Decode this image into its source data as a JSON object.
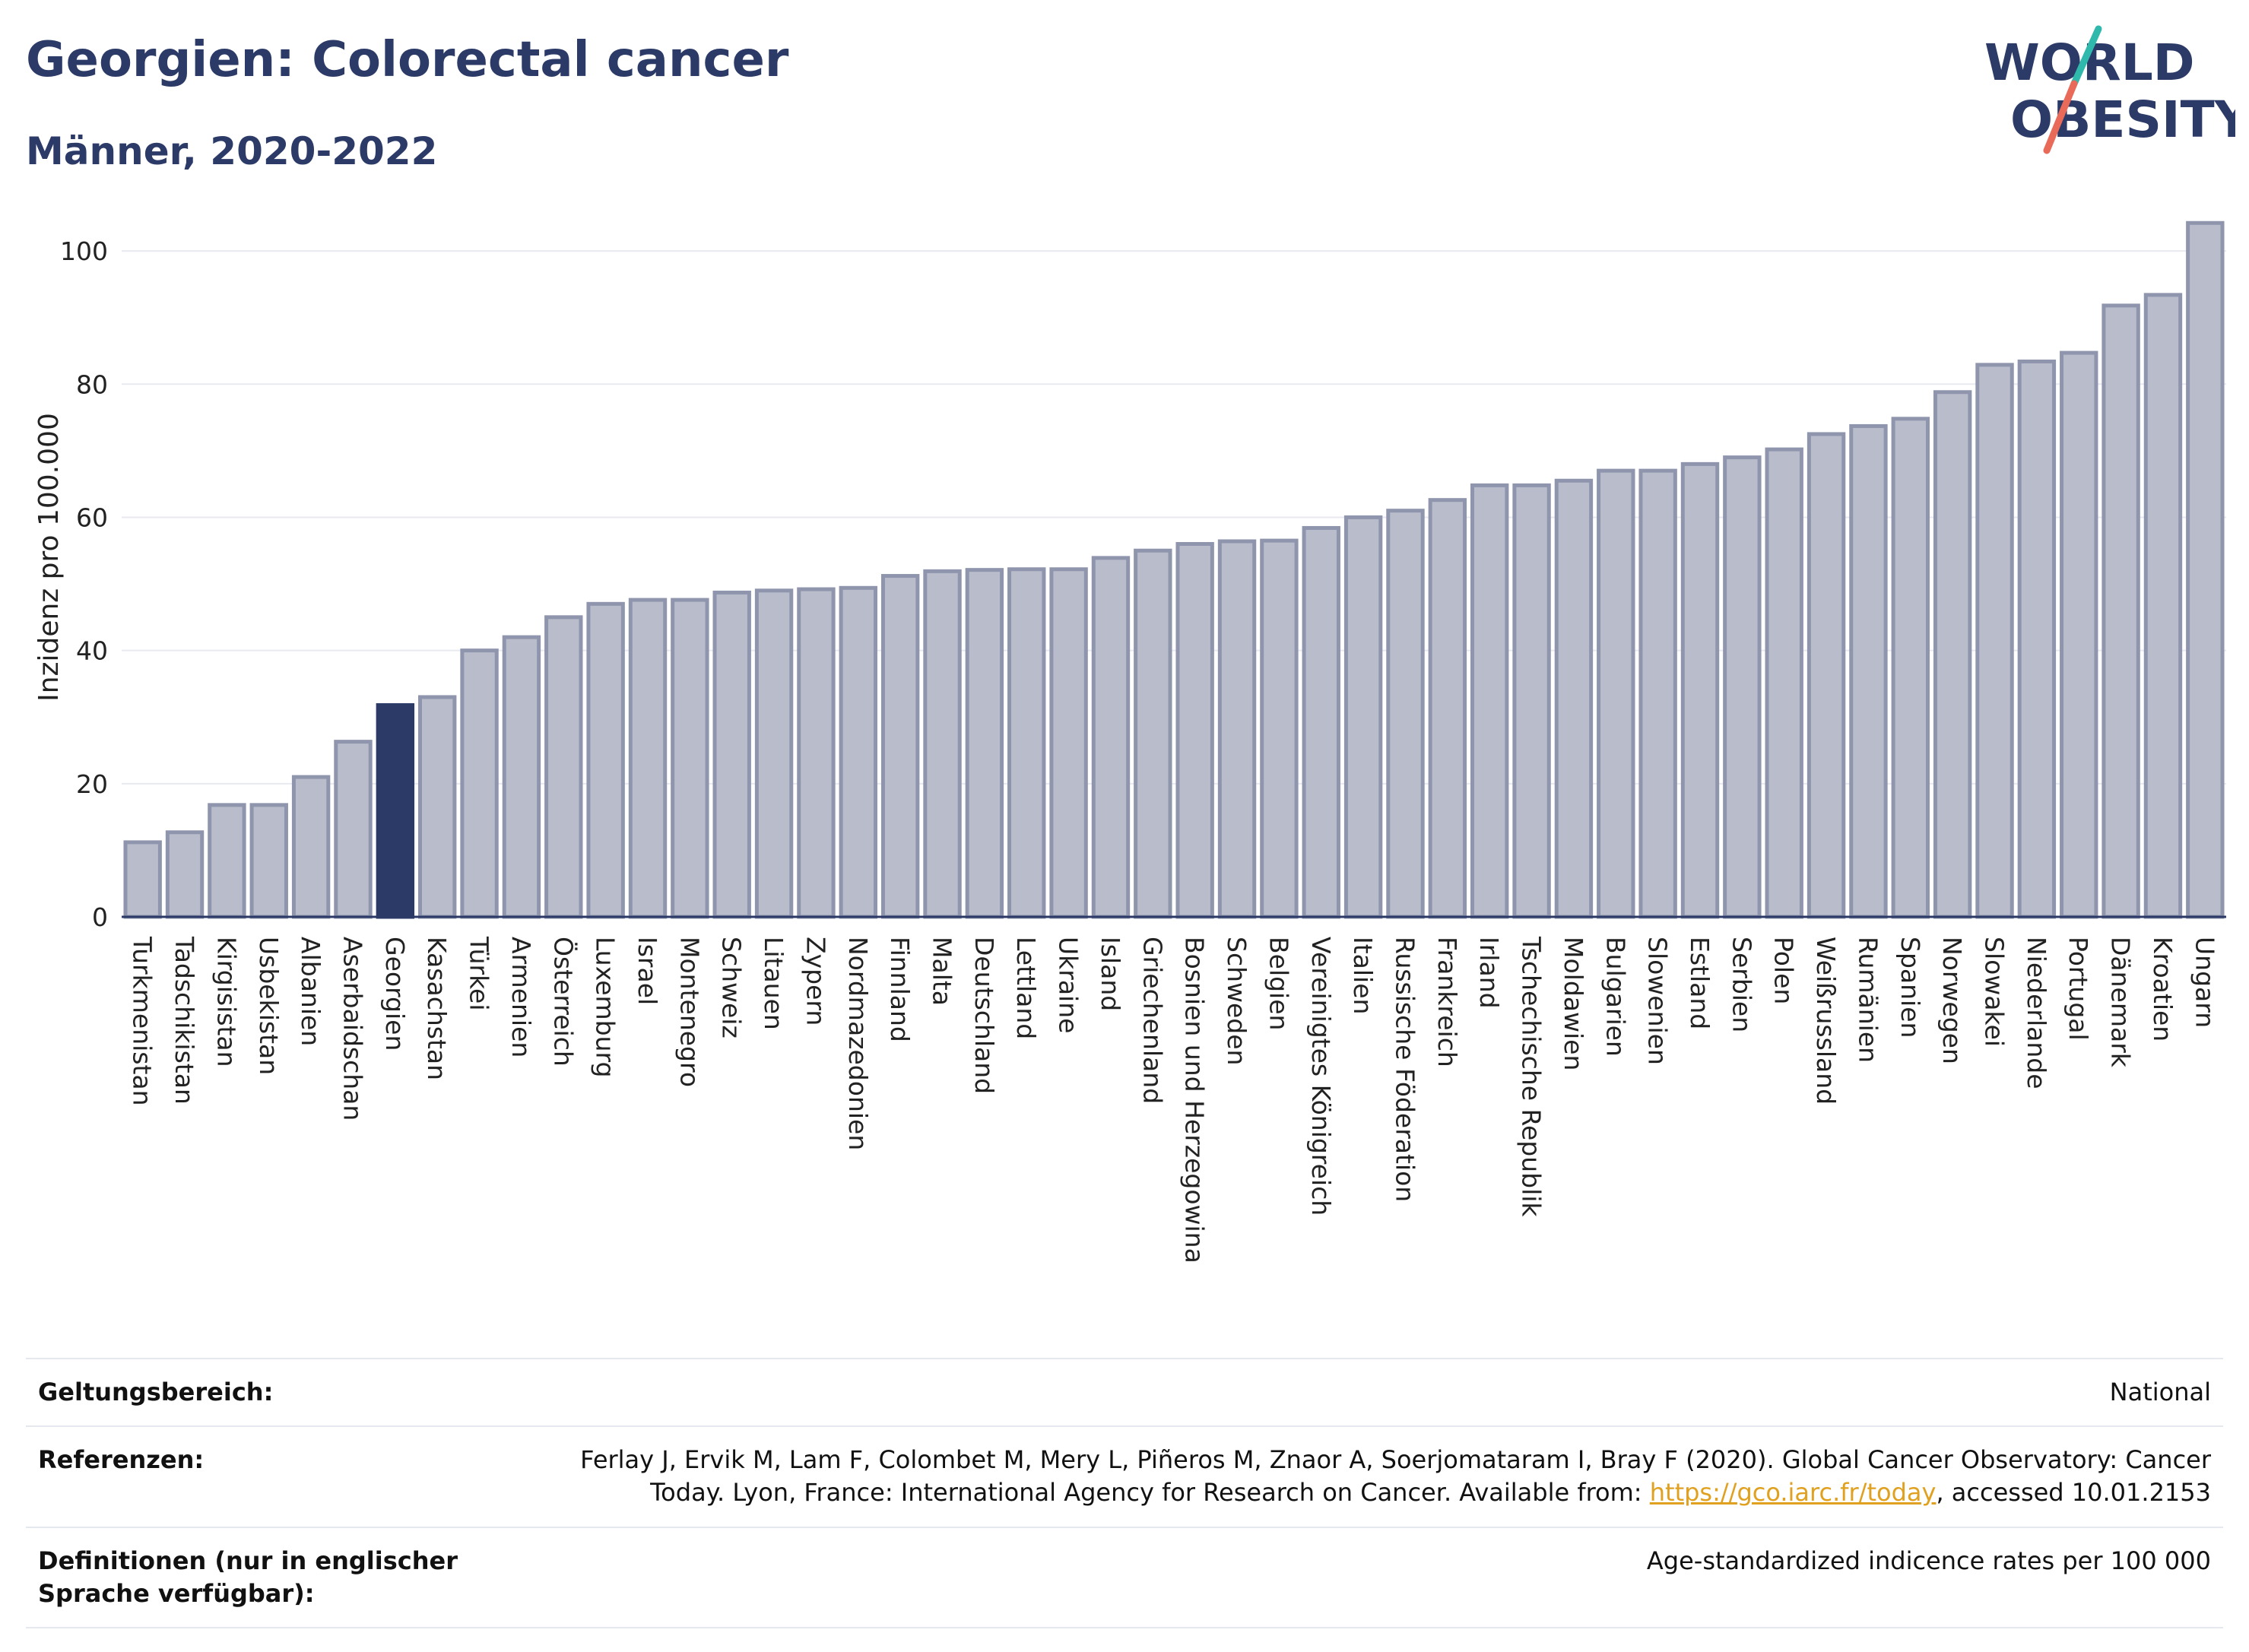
{
  "header": {
    "title": "Georgien: Colorectal cancer",
    "subtitle": "Männer, 2020-2022"
  },
  "logo": {
    "line1": "WORLD",
    "line2": "OBESITY"
  },
  "colors": {
    "bar": "#b9bdcb",
    "bar_border": "#8f95ad",
    "highlight": "#2b3a67",
    "text": "#2b3a67"
  },
  "chart_data": {
    "type": "bar",
    "title": "Georgien: Colorectal cancer",
    "subtitle": "Männer, 2020-2022",
    "ylabel": "Inzidenz pro 100.000",
    "xlabel": "",
    "ylim": [
      0,
      108
    ],
    "yticks": [
      0,
      20,
      40,
      60,
      80,
      100
    ],
    "grid": true,
    "highlight": "Georgien",
    "categories": [
      "Turkmenistan",
      "Tadschikistan",
      "Kirgisistan",
      "Usbekistan",
      "Albanien",
      "Aserbaidschan",
      "Georgien",
      "Kasachstan",
      "Türkei",
      "Armenien",
      "Österreich",
      "Luxemburg",
      "Israel",
      "Montenegro",
      "Schweiz",
      "Litauen",
      "Zypern",
      "Nordmazedonien",
      "Finnland",
      "Malta",
      "Deutschland",
      "Lettland",
      "Ukraine",
      "Island",
      "Griechenland",
      "Bosnien und Herzegowina",
      "Schweden",
      "Belgien",
      "Vereinigtes Königreich",
      "Italien",
      "Russische Föderation",
      "Frankreich",
      "Irland",
      "Tschechische Republik",
      "Moldawien",
      "Bulgarien",
      "Slowenien",
      "Estland",
      "Serbien",
      "Polen",
      "Weißrussland",
      "Rumänien",
      "Spanien",
      "Norwegen",
      "Slowakei",
      "Niederlande",
      "Portugal",
      "Dänemark",
      "Kroatien",
      "Ungarn"
    ],
    "values": [
      11.2,
      12.7,
      16.8,
      16.8,
      21.0,
      26.3,
      31.8,
      33.0,
      40.0,
      42.0,
      45.0,
      47.0,
      47.6,
      47.6,
      48.7,
      49.0,
      49.2,
      49.4,
      51.2,
      51.9,
      52.1,
      52.2,
      52.2,
      53.9,
      55.0,
      56.0,
      56.4,
      56.5,
      58.4,
      60.0,
      61.0,
      62.6,
      64.8,
      64.8,
      65.5,
      67.0,
      67.0,
      68.0,
      69.0,
      70.2,
      72.5,
      73.7,
      74.8,
      78.8,
      82.9,
      83.4,
      84.7,
      91.8,
      93.4,
      104.2
    ]
  },
  "footer": {
    "scope_label": "Geltungsbereich:",
    "scope_value": "National",
    "ref_label": "Referenzen:",
    "ref_text_1": "Ferlay J, Ervik M, Lam F, Colombet M, Mery L, Piñeros M, Znaor A, Soerjomataram I, Bray F (2020). Global Cancer Observatory: Cancer Today. Lyon, France: International Agency for Research on Cancer. Available from: ",
    "ref_link": "https://gco.iarc.fr/today",
    "ref_text_2": ", accessed 10.01.2153",
    "def_label": "Definitionen (nur in englischer Sprache verfügbar):",
    "def_value": "Age-standardized indicence rates per 100 000"
  }
}
